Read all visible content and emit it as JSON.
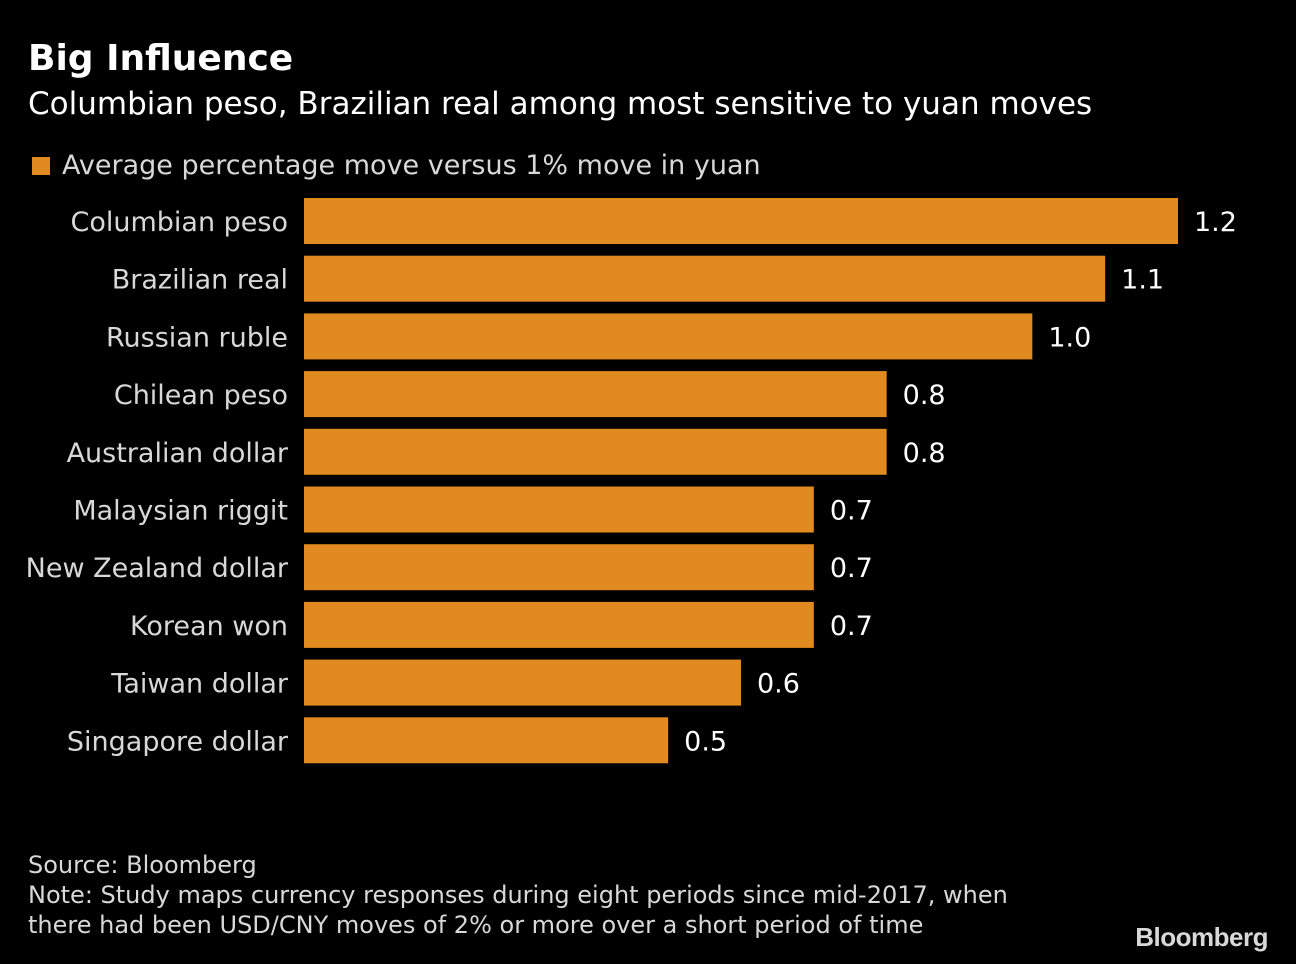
{
  "header": {
    "title": "Big Influence",
    "subtitle": "Columbian peso, Brazilian real among most sensitive to yuan moves"
  },
  "colors": {
    "bar": "#e08a20",
    "background": "#000000",
    "text": "#ffffff"
  },
  "chart_data": {
    "type": "bar",
    "orientation": "horizontal",
    "title": "Big Influence",
    "subtitle": "Columbian peso, Brazilian real among most sensitive to yuan moves",
    "legend": [
      "Average percentage move versus 1% move in yuan"
    ],
    "legend_position": "top-left",
    "categories": [
      "Columbian peso",
      "Brazilian real",
      "Russian ruble",
      "Chilean peso",
      "Australian dollar",
      "Malaysian riggit",
      "New Zealand dollar",
      "Korean won",
      "Taiwan dollar",
      "Singapore dollar"
    ],
    "values": [
      1.2,
      1.1,
      1.0,
      0.8,
      0.8,
      0.7,
      0.7,
      0.7,
      0.6,
      0.5
    ],
    "value_labels": [
      "1.2",
      "1.1",
      "1.0",
      "0.8",
      "0.8",
      "0.7",
      "0.7",
      "0.7",
      "0.6",
      "0.5"
    ],
    "xlim": [
      0,
      1.2
    ],
    "grid": false
  },
  "footer": {
    "source": "Source: Bloomberg",
    "note_line1": "Note: Study maps currency responses during eight periods since mid-2017, when",
    "note_line2": "there had been USD/CNY moves of 2% or more over a short period of time"
  },
  "brand": "Bloomberg"
}
